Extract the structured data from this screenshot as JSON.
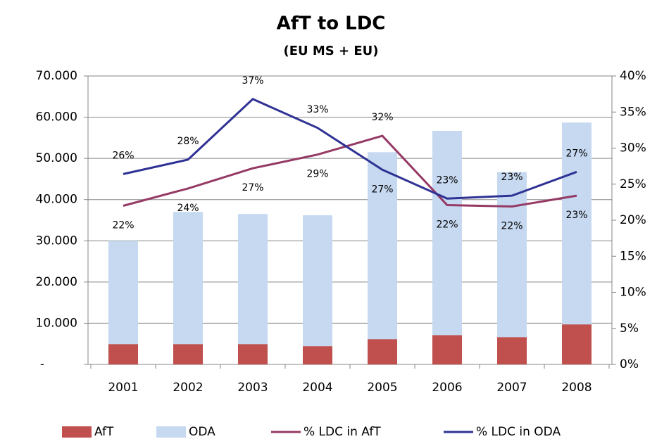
{
  "chart_data": {
    "type": "bar_line_combo",
    "title": "AfT to LDC",
    "subtitle": "(EU MS + EU)",
    "categories": [
      "2001",
      "2002",
      "2003",
      "2004",
      "2005",
      "2006",
      "2007",
      "2008"
    ],
    "series": [
      {
        "name": "AfT",
        "type": "bar",
        "color": "#c0504d",
        "values": [
          4900,
          4900,
          4900,
          4400,
          6100,
          7100,
          6600,
          9700
        ]
      },
      {
        "name": "ODA",
        "type": "bar",
        "color": "#c6d9f1",
        "values": [
          30000,
          37000,
          36500,
          36200,
          51500,
          56700,
          46700,
          58700
        ]
      },
      {
        "name": "% LDC in AfT",
        "type": "line",
        "axis": "y2",
        "color": "#953a64",
        "values": [
          22.0,
          24.4,
          27.2,
          29.1,
          31.7,
          22.1,
          21.9,
          23.4
        ],
        "value_labels": [
          "22%",
          "24%",
          "27%",
          "29%",
          "32%",
          "22%",
          "22%",
          "23%"
        ]
      },
      {
        "name": "% LDC in ODA",
        "type": "line",
        "axis": "y2",
        "color": "#2f3294",
        "values": [
          26.4,
          28.4,
          36.8,
          32.8,
          27.0,
          23.0,
          23.4,
          26.7
        ],
        "value_labels": [
          "26%",
          "28%",
          "37%",
          "33%",
          "27%",
          "23%",
          "23%",
          "27%"
        ]
      }
    ],
    "ylim": [
      0,
      70000
    ],
    "yticks": [
      {
        "value": 0,
        "label": "-"
      },
      {
        "value": 10000,
        "label": "10.000"
      },
      {
        "value": 20000,
        "label": "20.000"
      },
      {
        "value": 30000,
        "label": "30.000"
      },
      {
        "value": 40000,
        "label": "40.000"
      },
      {
        "value": 50000,
        "label": "50.000"
      },
      {
        "value": 60000,
        "label": "60.000"
      },
      {
        "value": 70000,
        "label": "70.000"
      }
    ],
    "y2lim": [
      0,
      40
    ],
    "y2ticks": [
      {
        "value": 0,
        "label": "0%"
      },
      {
        "value": 5,
        "label": "5%"
      },
      {
        "value": 10,
        "label": "10%"
      },
      {
        "value": 15,
        "label": "15%"
      },
      {
        "value": 20,
        "label": "20%"
      },
      {
        "value": 25,
        "label": "25%"
      },
      {
        "value": 30,
        "label": "30%"
      },
      {
        "value": 35,
        "label": "35%"
      },
      {
        "value": 40,
        "label": "40%"
      }
    ],
    "grid": true,
    "legend": "bottom"
  }
}
